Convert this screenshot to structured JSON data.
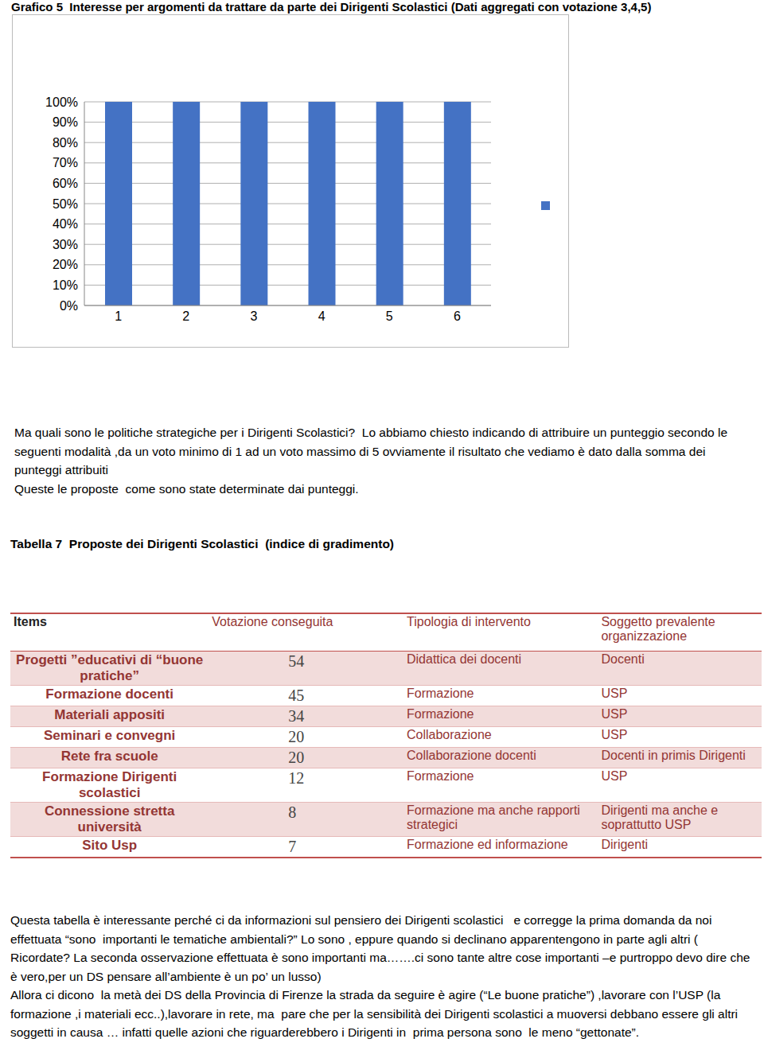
{
  "chart_data": {
    "type": "bar",
    "title": "Grafico 5  Interesse per argomenti da trattare da parte dei Dirigenti Scolastici (Dati aggregati con votazione 3,4,5)",
    "categories": [
      "1",
      "2",
      "3",
      "4",
      "5",
      "6"
    ],
    "values": [
      100,
      100,
      100,
      100,
      100,
      100
    ],
    "color": "#4472c4",
    "ylim": [
      0,
      100
    ],
    "yticks": [
      {
        "value": 0,
        "label": "0%"
      },
      {
        "value": 10,
        "label": "10%"
      },
      {
        "value": 20,
        "label": "20%"
      },
      {
        "value": 30,
        "label": "30%"
      },
      {
        "value": 40,
        "label": "40%"
      },
      {
        "value": 50,
        "label": "50%"
      },
      {
        "value": 60,
        "label": "60%"
      },
      {
        "value": 70,
        "label": "70%"
      },
      {
        "value": 80,
        "label": "80%"
      },
      {
        "value": 90,
        "label": "90%"
      },
      {
        "value": 100,
        "label": "100%"
      }
    ],
    "grid": true,
    "legend": "right"
  },
  "document": {
    "paragraph_1": [
      "Ma quali sono le politiche strategiche per i Dirigenti Scolastici?  Lo abbiamo chiesto indicando di attribuire un punteggio secondo le seguenti modalità ,da un voto minimo di 1 ad un voto massimo di 5 ovviamente il risultato che vediamo è dato dalla somma dei punteggi attribuiti",
      "Queste le proposte  come sono state determinate dai punteggi."
    ],
    "table": {
      "title": "Tabella 7  Proposte dei Dirigenti Scolastici  (indice di gradimento)",
      "header": [
        "Items",
        "Votazione conseguita",
        "Tipologia di intervento",
        "Soggetto prevalente organizzazione"
      ],
      "rows": [
        [
          "Progetti ”educativi di “buone pratiche”",
          54,
          "Didattica dei docenti",
          "Docenti"
        ],
        [
          "Formazione docenti",
          45,
          "Formazione",
          "USP"
        ],
        [
          "Materiali appositi",
          34,
          "Formazione",
          "USP"
        ],
        [
          "Seminari e convegni",
          20,
          "Collaborazione",
          "USP"
        ],
        [
          "Rete fra scuole",
          20,
          "Collaborazione docenti",
          "Docenti in primis Dirigenti"
        ],
        [
          "Formazione Dirigenti scolastici",
          12,
          "Formazione",
          "USP"
        ],
        [
          "Connessione stretta università",
          8,
          "Formazione  ma anche rapporti strategici",
          "Dirigenti ma anche e soprattutto USP"
        ],
        [
          "Sito Usp",
          7,
          "Formazione ed informazione",
          "Dirigenti"
        ]
      ]
    },
    "paragraph_2": [
      "Questa tabella è interessante perché ci da informazioni sul pensiero dei Dirigenti scolastici   e corregge la prima domanda da noi effettuata “sono  importanti le tematiche ambientali?” Lo sono , eppure quando si declinano apparentengono in parte agli altri ( Ricordate? La seconda osservazione effettuata è sono importanti ma…….ci sono tante altre cose importanti –e purtroppo devo dire che è vero,per un DS pensare all’ambiente è un po’ un lusso)",
      "Allora ci dicono  la metà dei DS della Provincia di Firenze la strada da seguire è agire (“Le buone pratiche”) ,lavorare con l’USP (la formazione ,i materiali ecc..),lavorare in rete, ma  pare che per la sensibilità dei Dirigenti scolastici a muoversi debbano essere gli altri soggetti in causa … infatti quelle azioni che riguarderebbero i Dirigenti in  prima persona sono  le meno “gettonate”."
    ]
  }
}
